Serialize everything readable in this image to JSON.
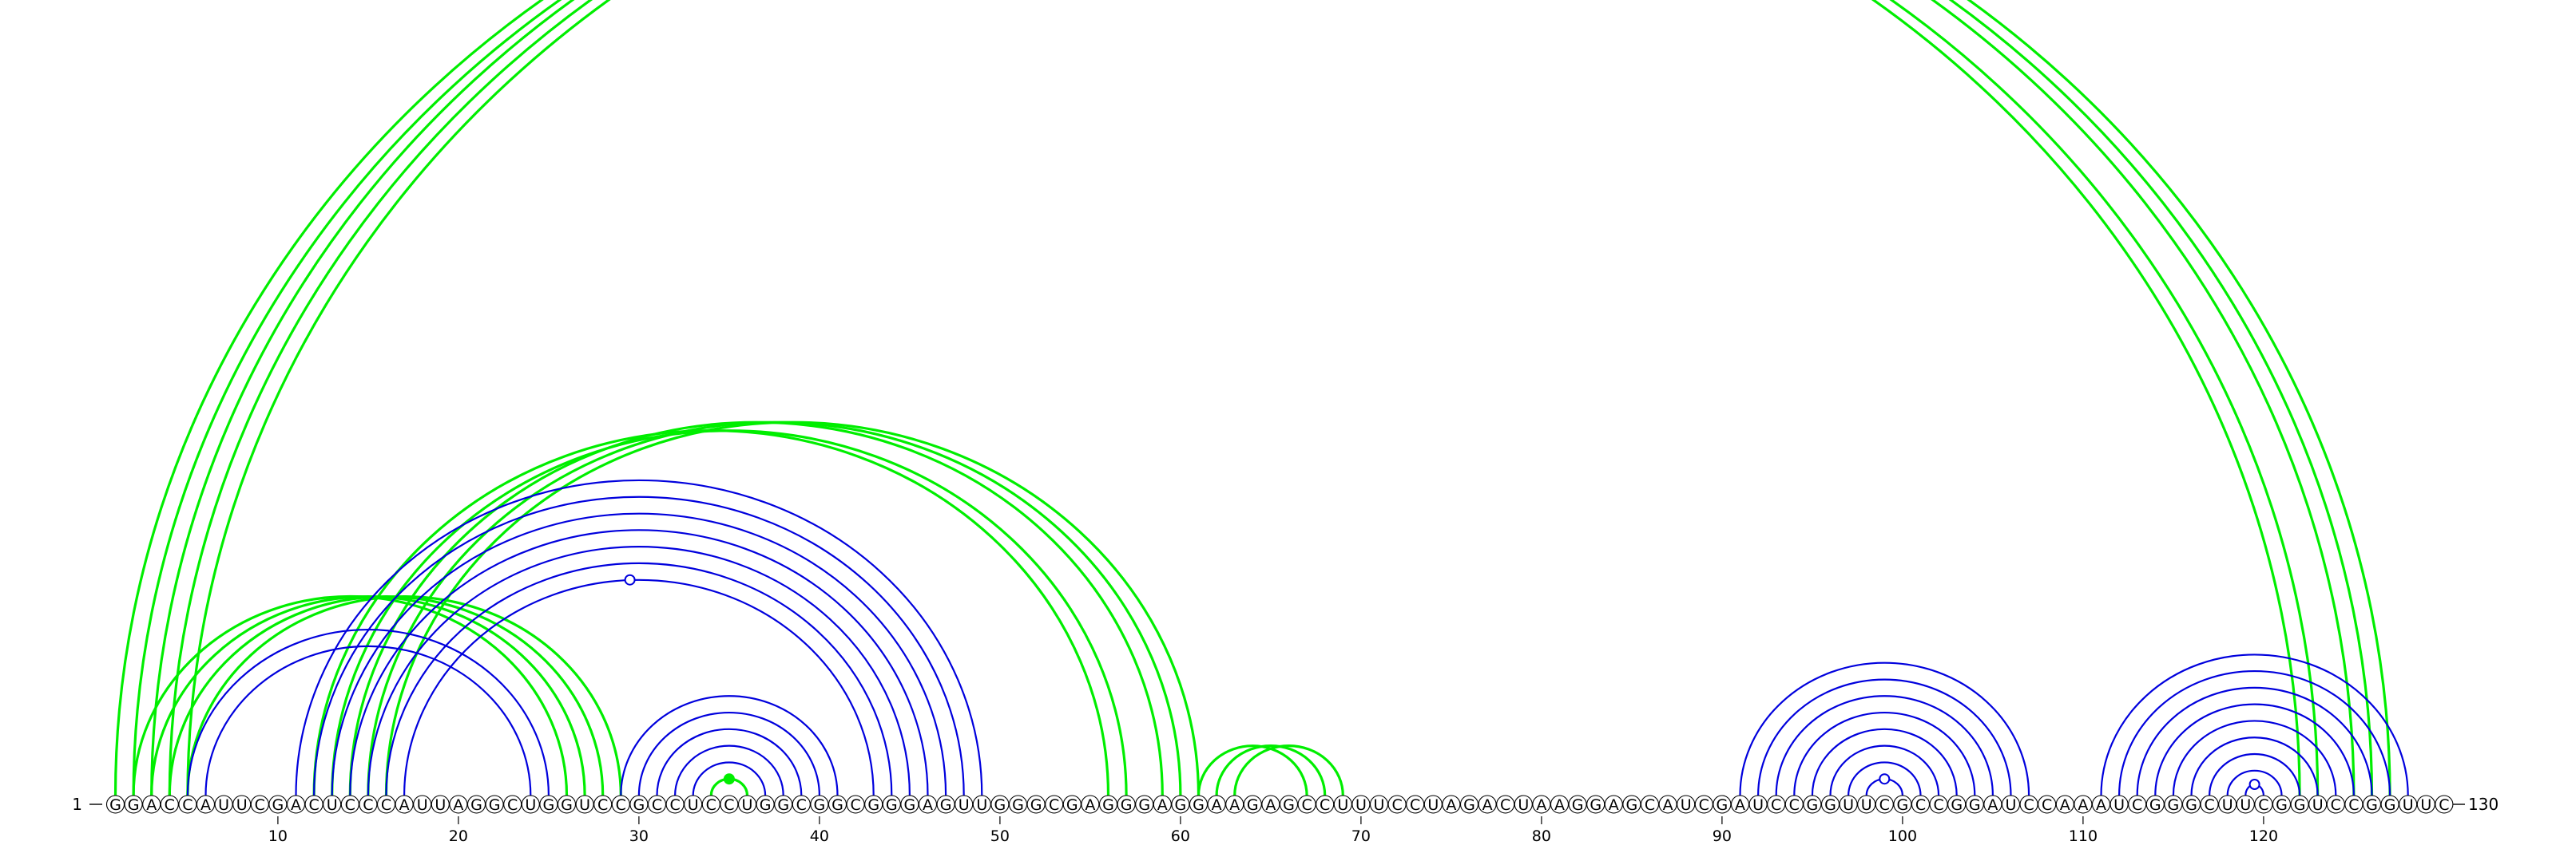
{
  "sequence": "GGACCAUUCGACUCCCAUUAGGCUGGUCCGCCUCCUGGCGGCGGGAGUUGGGCGAGGGAGGAAGAGCCUUUCCUAGACUAAGGAGCAUCGAUCCGGUUCGCCGGAUCCAAAUCGGGCUUCGGUCCGGUUC",
  "labels": {
    "start_index": "1",
    "end_index": "130",
    "ticks": [
      "10",
      "20",
      "30",
      "40",
      "50",
      "60",
      "70",
      "80",
      "90",
      "100",
      "110",
      "120"
    ]
  },
  "colors": {
    "upper_arcs": "#00ee00",
    "lower_arcs": "#0000dd",
    "open_marker_fill": "#ffffff",
    "filled_marker_fill": "#00ee00"
  },
  "arcs": {
    "green": [
      [
        1,
        122
      ],
      [
        2,
        123
      ],
      [
        3,
        125
      ],
      [
        4,
        126
      ],
      [
        5,
        127
      ],
      [
        2,
        26
      ],
      [
        3,
        27
      ],
      [
        4,
        28
      ],
      [
        5,
        29
      ],
      [
        12,
        56
      ],
      [
        13,
        57
      ],
      [
        14,
        59
      ],
      [
        15,
        60
      ],
      [
        16,
        61
      ],
      [
        34,
        36
      ],
      [
        61,
        67
      ],
      [
        62,
        68
      ],
      [
        63,
        69
      ]
    ],
    "blue": [
      [
        5,
        25
      ],
      [
        6,
        24
      ],
      [
        11,
        49
      ],
      [
        12,
        48
      ],
      [
        13,
        47
      ],
      [
        14,
        46
      ],
      [
        15,
        45
      ],
      [
        16,
        44
      ],
      [
        17,
        43
      ],
      [
        29,
        41
      ],
      [
        30,
        40
      ],
      [
        31,
        39
      ],
      [
        32,
        38
      ],
      [
        33,
        37
      ],
      [
        91,
        107
      ],
      [
        92,
        106
      ],
      [
        93,
        105
      ],
      [
        94,
        104
      ],
      [
        95,
        103
      ],
      [
        96,
        102
      ],
      [
        97,
        101
      ],
      [
        98,
        100
      ],
      [
        111,
        128
      ],
      [
        112,
        127
      ],
      [
        113,
        126
      ],
      [
        114,
        125
      ],
      [
        115,
        124
      ],
      [
        116,
        123
      ],
      [
        117,
        122
      ],
      [
        118,
        121
      ],
      [
        119,
        120
      ]
    ]
  },
  "markers": [
    {
      "position": 29.5,
      "kind": "open",
      "series": "blue"
    },
    {
      "position": 35,
      "kind": "filled",
      "series": "green"
    },
    {
      "position": 99,
      "kind": "open",
      "series": "blue"
    },
    {
      "position": 119.5,
      "kind": "open",
      "series": "blue"
    }
  ]
}
